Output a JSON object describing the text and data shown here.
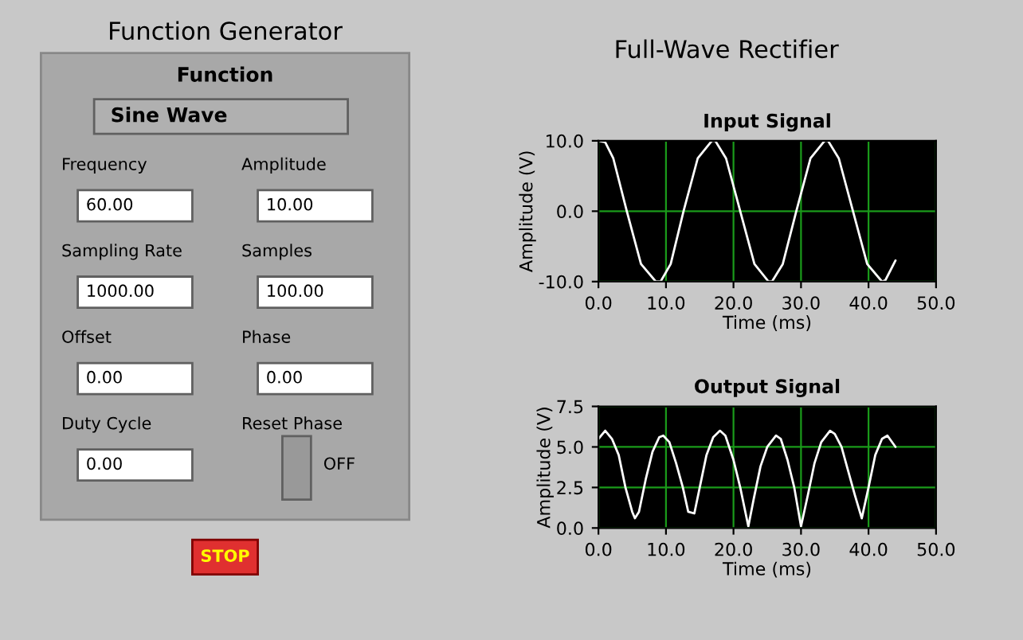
{
  "chart_data": [
    {
      "type": "other",
      "title": "Function Generator",
      "annotations": [
        "Function",
        "Sine Wave",
        "Frequency",
        "60.00",
        "Amplitude",
        "10.00",
        "Sampling Rate",
        "1000.00",
        "Samples",
        "100.00",
        "Offset",
        "0.00",
        "Phase",
        "0.00",
        "Duty Cycle",
        "0.00",
        "Reset Phase",
        "OFF",
        "STOP"
      ]
    },
    {
      "type": "line",
      "title": "Full-Wave Rectifier",
      "subtitle": "Input Signal",
      "xlabel": "Time (ms)",
      "ylabel": "Amplitude (V)",
      "xlim": [
        0,
        50
      ],
      "ylim": [
        -10,
        10
      ],
      "xticks": [
        {
          "value": 0,
          "label": "0.0"
        },
        {
          "value": 10,
          "label": "10.0"
        },
        {
          "value": 20,
          "label": "20.0"
        },
        {
          "value": 30,
          "label": "30.0"
        },
        {
          "value": 40,
          "label": "40.0"
        },
        {
          "value": 50,
          "label": "50.0"
        }
      ],
      "yticks": [
        {
          "value": -10,
          "label": "-10.0"
        },
        {
          "value": 0,
          "label": "0.0"
        },
        {
          "value": 10,
          "label": "10.0"
        }
      ],
      "grid": true,
      "series": [
        {
          "color": "#ffffff",
          "x": [
            0,
            1,
            2.2,
            4.2,
            6.3,
            8.5,
            9.2,
            10.7,
            12.6,
            14.7,
            16.8,
            17.3,
            18.9,
            21,
            23.1,
            25.2,
            25.7,
            27.3,
            29.3,
            31.4,
            33.5,
            34,
            35.6,
            37.7,
            39.8,
            42,
            42.5,
            44
          ],
          "values": [
            10,
            9.8,
            7.5,
            0,
            -7.5,
            -10,
            -10,
            -7.5,
            0,
            7.5,
            10,
            10,
            7.5,
            0,
            -7.5,
            -10,
            -10,
            -7.5,
            0,
            7.5,
            10,
            10,
            7.5,
            0,
            -7.5,
            -10,
            -9.8,
            -7
          ]
        }
      ]
    },
    {
      "type": "line",
      "title": "Output Signal",
      "xlabel": "Time (ms)",
      "ylabel": "Amplitude (V)",
      "xlim": [
        0,
        50
      ],
      "ylim": [
        0,
        7.5
      ],
      "xticks": [
        {
          "value": 0,
          "label": "0.0"
        },
        {
          "value": 10,
          "label": "10.0"
        },
        {
          "value": 20,
          "label": "20.0"
        },
        {
          "value": 30,
          "label": "30.0"
        },
        {
          "value": 40,
          "label": "40.0"
        },
        {
          "value": 50,
          "label": "50.0"
        }
      ],
      "yticks": [
        {
          "value": 0,
          "label": "0.0"
        },
        {
          "value": 2.5,
          "label": "2.5"
        },
        {
          "value": 5,
          "label": "5.0"
        },
        {
          "value": 7.5,
          "label": "7.5"
        }
      ],
      "grid": true,
      "series": [
        {
          "color": "#ffffff",
          "x": [
            0,
            1,
            2,
            3,
            4,
            5,
            5.4,
            6,
            7,
            8,
            9,
            9.6,
            10.5,
            11.5,
            12.5,
            13.3,
            14.2,
            15,
            16,
            17,
            18,
            18.8,
            20,
            21,
            22.2,
            23,
            24,
            25,
            26.3,
            27,
            28,
            29,
            30,
            31,
            32,
            33,
            34.3,
            35,
            36,
            37,
            38,
            39,
            40,
            41,
            42,
            42.8,
            44
          ],
          "values": [
            5.5,
            6,
            5.5,
            4.5,
            2.5,
            1,
            0.6,
            1,
            3,
            4.7,
            5.6,
            5.7,
            5.3,
            4,
            2.5,
            1,
            0.9,
            2.5,
            4.5,
            5.6,
            6,
            5.7,
            4.2,
            2.5,
            0.1,
            1.8,
            3.8,
            5,
            5.7,
            5.5,
            4.2,
            2.5,
            0.1,
            2,
            4,
            5.3,
            6,
            5.8,
            5,
            3.5,
            2,
            0.6,
            2.5,
            4.5,
            5.5,
            5.7,
            5
          ]
        }
      ]
    }
  ]
}
